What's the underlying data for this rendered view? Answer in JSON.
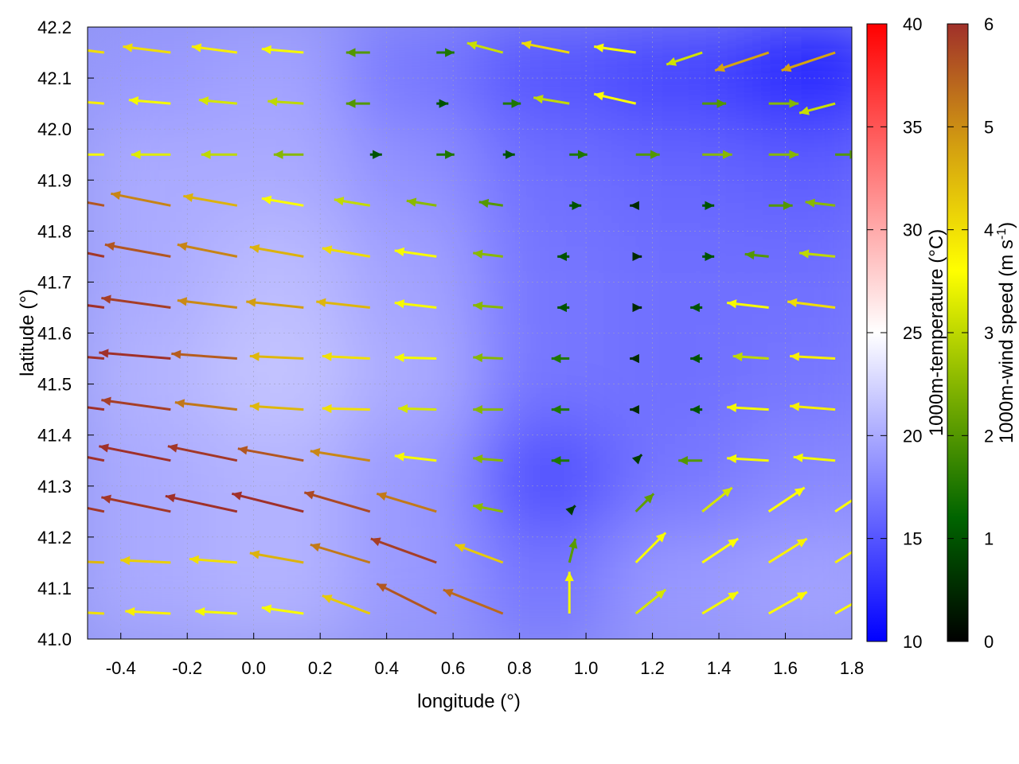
{
  "chart_data": {
    "type": "vector-field-heatmap",
    "xlabel": "longitude (°)",
    "ylabel": "latitude (°)",
    "xlim": [
      -0.5,
      1.8
    ],
    "ylim": [
      41.0,
      42.2
    ],
    "xticks": [
      "-0.4",
      "-0.2",
      "0.0",
      "0.2",
      "0.4",
      "0.6",
      "0.8",
      "1.0",
      "1.2",
      "1.4",
      "1.6",
      "1.8"
    ],
    "yticks": [
      "41.0",
      "41.1",
      "41.2",
      "41.3",
      "41.4",
      "41.5",
      "41.6",
      "41.7",
      "41.8",
      "41.9",
      "42.0",
      "42.1",
      "42.2"
    ],
    "grid": true,
    "temperature": {
      "label": "1000m-temperature (°C)",
      "range": [
        10,
        40
      ],
      "ticks": [
        "10",
        "15",
        "20",
        "25",
        "30",
        "35",
        "40"
      ],
      "colors": {
        "low": "#0000ff",
        "mid": "#ffffff",
        "high": "#ff0000"
      },
      "lons": [
        -0.3,
        0.1,
        0.5,
        0.9,
        1.3,
        1.7
      ],
      "lats": [
        42.1,
        41.9,
        41.7,
        41.5,
        41.3,
        41.1
      ],
      "values": [
        [
          19,
          19.5,
          17,
          15,
          14,
          12
        ],
        [
          20,
          20,
          18.5,
          16.5,
          16,
          15.5
        ],
        [
          20,
          21,
          19.5,
          17,
          16.5,
          16.5
        ],
        [
          20.5,
          21.5,
          20,
          17,
          16.5,
          17
        ],
        [
          20,
          20.5,
          19,
          14.5,
          17,
          18
        ],
        [
          20,
          20.5,
          19,
          17,
          19,
          19.5
        ]
      ]
    },
    "wind": {
      "label_main": "1000m-wind speed (m s",
      "label_sup": "-1",
      "label_end": ")",
      "range": [
        0,
        6
      ],
      "ticks": [
        "0",
        "1",
        "2",
        "3",
        "4",
        "5",
        "6"
      ],
      "colors": [
        "#000000",
        "#006400",
        "#7cb000",
        "#ffff00",
        "#d4a010",
        "#a0302a"
      ],
      "lons": [
        -0.45,
        -0.25,
        -0.05,
        0.15,
        0.35,
        0.55,
        0.75,
        0.95,
        1.15,
        1.35,
        1.55,
        1.75
      ],
      "lats": [
        42.15,
        42.05,
        41.95,
        41.85,
        41.75,
        41.65,
        41.55,
        41.45,
        41.35,
        41.25,
        41.15,
        41.05
      ],
      "u": [
        [
          -4,
          -4,
          -3.8,
          -3.5,
          -2,
          1.5,
          -3,
          -4,
          -3.5,
          -3,
          -4.5,
          -4.5
        ],
        [
          -3.8,
          -3.5,
          -3.2,
          -3,
          -2,
          1,
          1.5,
          -3,
          -3.5,
          2,
          2.5,
          -3
        ],
        [
          -3.5,
          -3.3,
          -3,
          -2.5,
          1,
          1.5,
          1,
          1.5,
          2,
          2.5,
          2.5,
          2
        ],
        [
          -5.5,
          -5,
          -4.5,
          -3.5,
          -3,
          -2.5,
          -2,
          1,
          -0.5,
          1,
          2,
          -2.5
        ],
        [
          -5.8,
          -5.5,
          -5,
          -4.5,
          -4,
          -3.5,
          -2.5,
          -1,
          0.5,
          1,
          -2,
          -3
        ],
        [
          -6,
          -5.8,
          -5,
          -4.8,
          -4.5,
          -3.5,
          -2.5,
          -1,
          0.5,
          -1,
          -3.5,
          -4
        ],
        [
          -6,
          -6,
          -5.5,
          -4.5,
          -4,
          -3.5,
          -2.5,
          -1.5,
          -0.5,
          -1,
          -3,
          -3.8
        ],
        [
          -6,
          -5.8,
          -5.2,
          -4.5,
          -4,
          -3.2,
          -2.5,
          -1.5,
          -0.5,
          -1,
          -3.5,
          -3.8
        ],
        [
          -6,
          -6,
          -5.8,
          -5.5,
          -5,
          -3.5,
          -2.5,
          -1.5,
          0.5,
          -2,
          -3.5,
          -3.5
        ],
        [
          -5.8,
          -5.8,
          -6,
          -6,
          -5.5,
          -5,
          -2.5,
          0.5,
          1.5,
          2.5,
          3,
          3
        ],
        [
          -4.5,
          -4.2,
          -4,
          -4.5,
          -5,
          -5.5,
          -4,
          0.5,
          2.5,
          3,
          3.2,
          3.2
        ],
        [
          -4,
          -3.8,
          -3.5,
          -3.5,
          -4,
          -5,
          -5,
          0,
          2.5,
          3,
          3.2,
          3.2
        ]
      ],
      "v": [
        [
          0.5,
          0.5,
          0.5,
          0.3,
          0,
          0,
          0.8,
          0.8,
          0.5,
          -1,
          -1.5,
          -1.5
        ],
        [
          0.3,
          0.3,
          0.3,
          0.2,
          0,
          0,
          0,
          0.5,
          0.8,
          0,
          0,
          -0.8
        ],
        [
          0,
          0,
          0,
          0,
          0,
          0,
          0,
          0,
          0,
          0,
          0,
          0
        ],
        [
          1,
          1,
          0.8,
          0.6,
          0.5,
          0.4,
          0.3,
          0,
          0,
          0,
          0,
          0.3
        ],
        [
          1.2,
          1,
          1,
          0.8,
          0.7,
          0.5,
          0.3,
          0,
          0,
          0,
          0.2,
          0.3
        ],
        [
          0.8,
          0.8,
          0.6,
          0.5,
          0.5,
          0.4,
          0.2,
          0,
          0,
          0,
          0.4,
          0.5
        ],
        [
          0.5,
          0.5,
          0.4,
          0.2,
          0.2,
          0.1,
          0.1,
          0,
          0,
          0,
          0.2,
          0.2
        ],
        [
          0.8,
          0.8,
          0.6,
          0.3,
          0.1,
          0.1,
          0,
          0,
          0,
          0,
          0.2,
          0.3
        ],
        [
          1.2,
          1.2,
          1.2,
          1,
          0.8,
          0.4,
          0.2,
          0,
          0.5,
          0,
          0.2,
          0.3
        ],
        [
          1.2,
          1.2,
          1.3,
          1.5,
          1.6,
          1.5,
          0.5,
          0.5,
          1.5,
          2,
          2,
          2
        ],
        [
          0.2,
          0.2,
          0.3,
          0.8,
          1.5,
          2,
          1.5,
          2,
          2.5,
          2,
          2,
          2
        ],
        [
          0.2,
          0.2,
          0.2,
          0.5,
          1.5,
          2.5,
          2,
          3.5,
          2,
          1.8,
          1.8,
          1.8
        ]
      ]
    }
  }
}
